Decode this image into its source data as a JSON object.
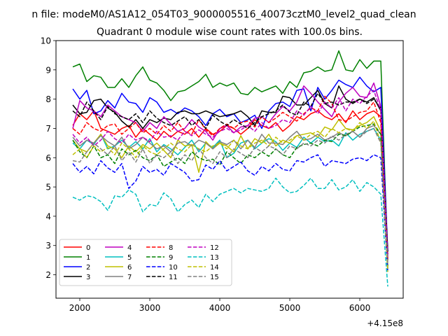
{
  "suptitle": "n file: modeM0/AS1A12_054T03_9000005516_40073cztM0_level2_quad_clean",
  "chart_data": {
    "type": "line",
    "title": "Quadrant 0 module wise count rates with 100.0s bins.",
    "xlabel": "",
    "ylabel": "",
    "x_offset_label": "+4.15e8",
    "xlim": [
      1660,
      6620
    ],
    "ylim": [
      1.2,
      10.0
    ],
    "x_ticks": [
      2000,
      3000,
      4000,
      5000,
      6000
    ],
    "y_ticks": [
      2,
      3,
      4,
      5,
      6,
      7,
      8,
      9,
      10
    ],
    "x_tick_labels": [
      "2000",
      "3000",
      "4000",
      "5000",
      "6000"
    ],
    "y_tick_labels": [
      "2",
      "3",
      "4",
      "5",
      "6",
      "7",
      "8",
      "9",
      "10"
    ],
    "grid": false,
    "legend_position": "lower-left",
    "legend_ncol": 4,
    "x": [
      1900,
      2000,
      2100,
      2200,
      2300,
      2400,
      2500,
      2600,
      2700,
      2800,
      2900,
      3000,
      3100,
      3200,
      3300,
      3400,
      3500,
      3600,
      3700,
      3800,
      3900,
      4000,
      4100,
      4200,
      4300,
      4400,
      4500,
      4600,
      4700,
      4800,
      4900,
      5000,
      5100,
      5200,
      5300,
      5400,
      5500,
      5600,
      5700,
      5800,
      5900,
      6000,
      6100,
      6200,
      6300,
      6400
    ],
    "series": [
      {
        "name": "0",
        "color": "#ff0000",
        "dash": false,
        "values": [
          7.1,
          7.5,
          7.3,
          7.6,
          7.0,
          6.9,
          6.8,
          7.0,
          7.1,
          6.7,
          7.0,
          6.8,
          6.6,
          6.9,
          6.7,
          6.9,
          6.8,
          7.0,
          6.7,
          7.0,
          6.8,
          6.9,
          7.1,
          7.0,
          6.8,
          7.0,
          7.3,
          7.1,
          7.0,
          7.2,
          6.9,
          7.1,
          7.4,
          7.3,
          7.5,
          7.6,
          7.4,
          7.3,
          7.5,
          7.2,
          7.6,
          7.3,
          7.5,
          7.6,
          7.4,
          2.7
        ]
      },
      {
        "name": "1",
        "color": "#008000",
        "dash": false,
        "values": [
          9.1,
          9.2,
          8.6,
          8.8,
          8.75,
          8.4,
          8.4,
          8.7,
          8.4,
          8.8,
          9.1,
          8.65,
          8.55,
          8.3,
          7.95,
          8.25,
          8.3,
          8.45,
          8.6,
          8.85,
          8.4,
          8.55,
          8.45,
          8.55,
          8.2,
          8.15,
          8.4,
          8.25,
          8.35,
          8.45,
          8.2,
          8.6,
          8.4,
          8.9,
          8.95,
          9.1,
          8.95,
          9.0,
          9.65,
          9.0,
          8.95,
          9.35,
          9.05,
          9.3,
          9.3,
          2.5
        ]
      },
      {
        "name": "2",
        "color": "#0000ff",
        "dash": false,
        "values": [
          8.35,
          8.0,
          8.3,
          7.5,
          7.6,
          7.95,
          7.7,
          8.2,
          7.9,
          7.85,
          7.55,
          8.05,
          7.9,
          7.55,
          7.65,
          7.5,
          7.7,
          7.6,
          7.4,
          7.1,
          7.5,
          7.65,
          7.4,
          7.5,
          7.2,
          7.3,
          7.45,
          7.0,
          7.6,
          7.85,
          7.9,
          7.75,
          8.3,
          8.35,
          7.6,
          8.4,
          8.0,
          8.3,
          8.65,
          8.5,
          8.4,
          8.75,
          8.45,
          8.25,
          8.4,
          2.8
        ]
      },
      {
        "name": "3",
        "color": "#000000",
        "dash": false,
        "values": [
          7.8,
          7.5,
          7.55,
          7.95,
          8.0,
          7.7,
          7.55,
          7.25,
          7.05,
          7.3,
          7.0,
          7.3,
          7.2,
          7.35,
          7.3,
          7.55,
          7.6,
          7.5,
          7.5,
          7.6,
          7.5,
          7.4,
          7.45,
          7.5,
          7.6,
          7.4,
          7.1,
          7.6,
          7.55,
          7.55,
          8.1,
          8.05,
          7.8,
          7.8,
          8.05,
          8.3,
          7.85,
          7.7,
          8.45,
          8.0,
          7.85,
          8.0,
          7.9,
          8.05,
          7.6,
          2.8
        ]
      },
      {
        "name": "4",
        "color": "#bf00bf",
        "dash": false,
        "values": [
          7.0,
          7.95,
          7.7,
          7.6,
          7.4,
          7.8,
          7.6,
          7.4,
          7.3,
          7.2,
          6.9,
          7.2,
          7.0,
          7.4,
          7.15,
          6.9,
          7.0,
          7.3,
          7.05,
          6.9,
          6.6,
          7.0,
          7.1,
          6.85,
          7.05,
          7.1,
          7.35,
          7.4,
          7.2,
          7.5,
          7.75,
          7.6,
          7.9,
          8.45,
          8.2,
          7.9,
          7.65,
          7.4,
          7.9,
          8.2,
          8.4,
          8.1,
          8.05,
          8.55,
          7.75,
          2.6
        ]
      },
      {
        "name": "5",
        "color": "#00bfbf",
        "dash": false,
        "values": [
          6.5,
          6.3,
          6.6,
          6.45,
          6.8,
          6.3,
          6.4,
          6.6,
          6.35,
          6.55,
          6.3,
          6.65,
          6.2,
          6.45,
          6.3,
          6.1,
          6.35,
          6.6,
          6.2,
          6.5,
          6.35,
          6.6,
          6.0,
          6.15,
          6.5,
          6.6,
          6.3,
          6.5,
          6.65,
          6.55,
          6.25,
          6.5,
          6.35,
          6.7,
          6.5,
          6.7,
          6.55,
          6.6,
          6.4,
          6.85,
          6.6,
          6.8,
          6.9,
          7.0,
          6.6,
          2.3
        ]
      },
      {
        "name": "6",
        "color": "#bfbf00",
        "dash": false,
        "values": [
          6.6,
          6.3,
          6.2,
          6.5,
          6.8,
          6.4,
          6.3,
          6.0,
          6.4,
          6.2,
          6.45,
          6.3,
          6.5,
          6.25,
          6.0,
          6.6,
          6.4,
          6.45,
          5.5,
          6.55,
          6.3,
          6.5,
          6.4,
          6.2,
          6.75,
          6.3,
          6.65,
          6.5,
          6.8,
          6.4,
          6.6,
          6.5,
          6.75,
          6.8,
          6.85,
          6.7,
          7.05,
          6.95,
          7.3,
          7.0,
          6.95,
          7.1,
          7.2,
          7.4,
          6.9,
          2.2
        ]
      },
      {
        "name": "7",
        "color": "#808080",
        "dash": false,
        "values": [
          6.7,
          6.4,
          6.6,
          6.5,
          6.75,
          6.55,
          6.4,
          6.7,
          6.3,
          6.45,
          6.7,
          6.5,
          6.3,
          6.4,
          6.2,
          6.5,
          6.55,
          6.4,
          6.6,
          6.5,
          6.3,
          6.55,
          6.45,
          6.6,
          6.3,
          6.6,
          6.35,
          6.8,
          6.5,
          6.5,
          6.45,
          6.7,
          6.9,
          6.6,
          6.65,
          6.8,
          6.6,
          6.7,
          6.85,
          6.75,
          6.9,
          6.7,
          7.0,
          7.1,
          6.8,
          2.3
        ]
      },
      {
        "name": "8",
        "color": "#ff0000",
        "dash": true,
        "values": [
          7.0,
          6.8,
          7.2,
          7.0,
          6.9,
          7.1,
          7.15,
          6.8,
          7.0,
          7.2,
          6.85,
          7.0,
          6.8,
          7.1,
          6.9,
          7.2,
          6.9,
          6.8,
          7.3,
          6.95,
          6.75,
          7.0,
          7.15,
          7.0,
          7.2,
          7.25,
          7.05,
          7.4,
          7.2,
          7.35,
          7.55,
          7.4,
          7.25,
          7.5,
          7.7,
          7.6,
          8.1,
          7.85,
          7.3,
          7.25,
          7.4,
          7.55,
          7.6,
          7.9,
          7.2,
          2.5
        ]
      },
      {
        "name": "9",
        "color": "#008000",
        "dash": true,
        "values": [
          6.6,
          6.2,
          6.0,
          6.4,
          6.0,
          6.1,
          5.8,
          6.3,
          6.1,
          6.25,
          6.0,
          5.9,
          6.1,
          5.7,
          5.85,
          6.0,
          5.8,
          6.2,
          6.0,
          5.9,
          5.95,
          5.75,
          6.2,
          6.0,
          5.8,
          6.1,
          6.0,
          6.2,
          6.05,
          6.3,
          6.1,
          6.0,
          6.35,
          6.45,
          6.5,
          6.4,
          6.6,
          6.55,
          6.8,
          6.75,
          6.9,
          7.05,
          7.1,
          7.15,
          6.8,
          2.2
        ]
      },
      {
        "name": "10",
        "color": "#0000ff",
        "dash": true,
        "values": [
          5.8,
          5.5,
          5.7,
          5.45,
          5.9,
          5.65,
          5.5,
          5.8,
          4.95,
          5.2,
          5.7,
          5.5,
          5.6,
          5.4,
          5.8,
          5.65,
          5.5,
          5.2,
          5.25,
          5.75,
          5.6,
          5.9,
          5.55,
          5.7,
          5.85,
          5.55,
          5.4,
          5.7,
          5.55,
          5.8,
          5.6,
          5.55,
          5.9,
          5.85,
          6.0,
          6.1,
          5.7,
          5.9,
          5.85,
          5.8,
          5.95,
          6.0,
          5.9,
          6.1,
          6.0,
          2.1
        ]
      },
      {
        "name": "11",
        "color": "#000000",
        "dash": true,
        "values": [
          7.6,
          7.4,
          7.9,
          7.6,
          7.3,
          7.75,
          7.5,
          7.4,
          7.3,
          7.5,
          7.2,
          7.6,
          7.35,
          7.2,
          7.1,
          7.25,
          7.4,
          7.1,
          7.3,
          7.0,
          7.45,
          7.25,
          7.1,
          7.3,
          7.15,
          7.0,
          7.2,
          7.4,
          7.5,
          7.6,
          7.8,
          7.55,
          7.45,
          7.9,
          7.75,
          8.2,
          7.85,
          7.9,
          7.8,
          7.9,
          7.9,
          8.0,
          7.85,
          8.0,
          7.7,
          2.7
        ]
      },
      {
        "name": "12",
        "color": "#bf00bf",
        "dash": true,
        "values": [
          6.8,
          6.5,
          6.7,
          6.4,
          6.6,
          6.9,
          6.65,
          6.5,
          6.8,
          6.6,
          6.7,
          6.55,
          6.9,
          6.7,
          6.75,
          6.6,
          6.9,
          6.75,
          6.95,
          6.8,
          6.7,
          6.9,
          7.0,
          6.85,
          6.95,
          7.1,
          6.9,
          7.2,
          7.0,
          7.1,
          7.3,
          7.2,
          7.6,
          7.45,
          7.75,
          7.5,
          7.9,
          7.7,
          8.05,
          7.6,
          8.0,
          7.85,
          8.1,
          8.3,
          7.6,
          2.6
        ]
      },
      {
        "name": "13",
        "color": "#00bfbf",
        "dash": true,
        "values": [
          4.65,
          4.55,
          4.7,
          4.65,
          4.5,
          4.2,
          4.7,
          4.65,
          4.9,
          4.75,
          4.15,
          4.4,
          4.35,
          4.8,
          4.6,
          4.15,
          4.4,
          4.55,
          4.3,
          4.75,
          4.5,
          4.75,
          4.85,
          4.95,
          4.8,
          4.95,
          4.9,
          4.85,
          4.95,
          5.3,
          5.0,
          4.8,
          4.85,
          5.05,
          5.3,
          4.95,
          4.95,
          5.25,
          4.9,
          5.0,
          5.25,
          4.85,
          5.15,
          5.0,
          4.75,
          1.6
        ]
      },
      {
        "name": "14",
        "color": "#bfbf00",
        "dash": true,
        "values": [
          6.1,
          6.3,
          6.0,
          6.4,
          6.2,
          6.35,
          6.1,
          6.5,
          6.3,
          6.0,
          6.4,
          6.2,
          6.1,
          6.3,
          6.5,
          6.3,
          6.2,
          6.45,
          6.3,
          6.2,
          6.4,
          6.5,
          6.3,
          6.6,
          6.4,
          6.3,
          6.5,
          6.6,
          6.4,
          6.7,
          6.5,
          6.6,
          6.75,
          6.6,
          6.8,
          6.9,
          6.7,
          7.0,
          6.85,
          7.0,
          6.9,
          7.2,
          7.0,
          7.25,
          6.5,
          2.1
        ]
      },
      {
        "name": "15",
        "color": "#808080",
        "dash": true,
        "values": [
          5.9,
          5.85,
          6.2,
          6.5,
          6.3,
          6.1,
          6.4,
          5.9,
          6.2,
          5.85,
          6.3,
          5.8,
          6.1,
          6.0,
          6.2,
          5.8,
          6.1,
          5.9,
          6.3,
          6.0,
          5.8,
          6.2,
          6.0,
          6.3,
          6.15,
          6.0,
          6.35,
          6.2,
          6.4,
          6.3,
          6.1,
          6.4,
          6.3,
          6.5,
          6.4,
          6.6,
          6.5,
          6.75,
          6.6,
          6.8,
          6.9,
          6.7,
          6.9,
          7.0,
          6.5,
          2.4
        ]
      }
    ]
  }
}
